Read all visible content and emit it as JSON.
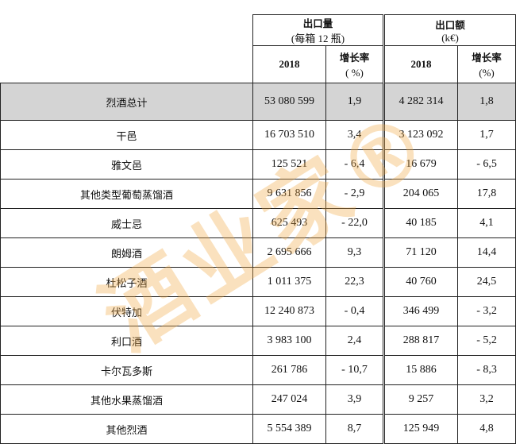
{
  "header": {
    "volume_title": "出口量",
    "volume_unit": "(每箱 12 瓶)",
    "value_title": "出口额",
    "value_unit": "(k€)",
    "year": "2018",
    "growth_label": "增长率",
    "growth_unit_volume": "( %)",
    "growth_unit_value": "(%)"
  },
  "rows": [
    {
      "name": "烈酒总计",
      "volume": "53 080 599",
      "volume_growth": "1,9",
      "value": "4 282 314",
      "value_growth": "1,8"
    },
    {
      "name": "干邑",
      "volume": "16 703 510",
      "volume_growth": "3,4",
      "value": "3 123 092",
      "value_growth": "1,7"
    },
    {
      "name": "雅文邑",
      "volume": "125 521",
      "volume_growth": "- 6,4",
      "value": "16 679",
      "value_growth": "- 6,5"
    },
    {
      "name": "其他类型葡萄蒸馏酒",
      "volume": "9 631 856",
      "volume_growth": "- 2,9",
      "value": "204 065",
      "value_growth": "17,8"
    },
    {
      "name": "威士忌",
      "volume": "625 493",
      "volume_growth": "- 22,0",
      "value": "40 185",
      "value_growth": "4,1"
    },
    {
      "name": "朗姆酒",
      "volume": "2 695 666",
      "volume_growth": "9,3",
      "value": "71 120",
      "value_growth": "14,4"
    },
    {
      "name": "杜松子酒",
      "volume": "1 011 375",
      "volume_growth": "22,3",
      "value": "40 760",
      "value_growth": "24,5"
    },
    {
      "name": "伏特加",
      "volume": "12 240 873",
      "volume_growth": "- 0,4",
      "value": "346 499",
      "value_growth": "- 3,2"
    },
    {
      "name": "利口酒",
      "volume": "3 983 100",
      "volume_growth": "2,4",
      "value": "288 817",
      "value_growth": "- 5,2"
    },
    {
      "name": "卡尔瓦多斯",
      "volume": "261 786",
      "volume_growth": "- 10,7",
      "value": "15 886",
      "value_growth": "- 8,3"
    },
    {
      "name": "其他水果蒸馏酒",
      "volume": "247 024",
      "volume_growth": "3,9",
      "value": "9 257",
      "value_growth": "3,2"
    },
    {
      "name": "其他烈酒",
      "volume": "5 554 389",
      "volume_growth": "8,7",
      "value": "125 949",
      "value_growth": "4,8"
    }
  ],
  "watermark": "酒业家®",
  "colors": {
    "total_row_bg": "#d4d4d4",
    "watermark": "#f0aa46"
  }
}
